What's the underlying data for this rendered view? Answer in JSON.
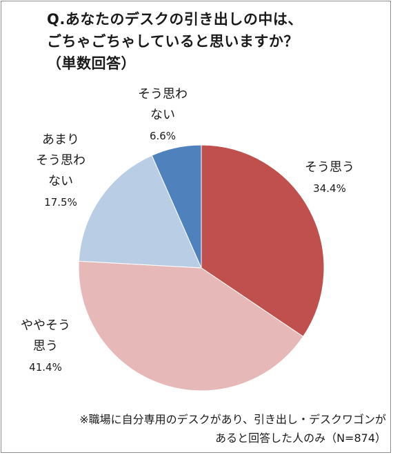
{
  "title": {
    "line1": "Q.あなたのデスクの引き出しの中は、",
    "line2": "ごちゃごちゃしていると思いますか？",
    "line3": "（単数回答）"
  },
  "chart_data": {
    "type": "pie",
    "slices": [
      {
        "label_lines": [
          "そう思う"
        ],
        "value": 34.4,
        "value_text": "34.4%",
        "color": "#c0504d"
      },
      {
        "label_lines": [
          "ややそう",
          "思う"
        ],
        "value": 41.4,
        "value_text": "41.4%",
        "color": "#e6b9b8"
      },
      {
        "label_lines": [
          "あまり",
          "そう思わ",
          "ない"
        ],
        "value": 17.5,
        "value_text": "17.5%",
        "color": "#b9cde5"
      },
      {
        "label_lines": [
          "そう思わ",
          "ない"
        ],
        "value": 6.6,
        "value_text": "6.6%",
        "color": "#4f81bd"
      }
    ]
  },
  "note": {
    "line1": "※職場に自分専用のデスクがあり、引き出し・デスクワゴンが",
    "line2": "あると回答した人のみ（N=874）"
  }
}
